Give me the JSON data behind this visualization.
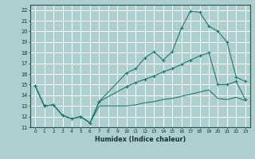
{
  "background_color": "#aecfcf",
  "grid_color": "#ffffff",
  "line_color": "#1e7a6e",
  "line1_x": [
    0,
    1,
    2,
    3,
    4,
    5,
    6,
    7,
    10,
    11,
    12,
    13,
    14,
    15,
    16,
    17,
    18,
    19,
    20,
    21,
    22,
    23
  ],
  "line1_y": [
    14.9,
    13.0,
    13.1,
    12.1,
    11.8,
    12.0,
    11.4,
    13.4,
    16.1,
    16.5,
    17.5,
    18.1,
    17.3,
    18.1,
    20.3,
    21.9,
    21.8,
    20.5,
    20.0,
    19.0,
    15.7,
    15.3
  ],
  "line2_x": [
    0,
    1,
    2,
    3,
    4,
    5,
    6,
    7,
    10,
    11,
    12,
    13,
    14,
    15,
    16,
    17,
    18,
    19,
    20,
    21,
    22,
    23
  ],
  "line2_y": [
    14.9,
    13.0,
    13.1,
    12.1,
    11.8,
    12.0,
    11.4,
    13.4,
    14.8,
    15.2,
    15.5,
    15.8,
    16.2,
    16.5,
    16.9,
    17.3,
    17.7,
    18.0,
    15.0,
    15.0,
    15.3,
    13.6
  ],
  "line3_x": [
    0,
    1,
    2,
    3,
    4,
    5,
    6,
    7,
    10,
    11,
    12,
    13,
    14,
    15,
    16,
    17,
    18,
    19,
    20,
    21,
    22,
    23
  ],
  "line3_y": [
    14.9,
    13.0,
    13.1,
    12.1,
    11.8,
    12.0,
    11.4,
    13.0,
    13.0,
    13.1,
    13.3,
    13.4,
    13.6,
    13.7,
    13.9,
    14.1,
    14.3,
    14.5,
    13.7,
    13.6,
    13.8,
    13.5
  ],
  "xlabel": "Humidex (Indice chaleur)",
  "xlim": [
    -0.5,
    23.5
  ],
  "ylim": [
    11,
    22.5
  ],
  "yticks": [
    11,
    12,
    13,
    14,
    15,
    16,
    17,
    18,
    19,
    20,
    21,
    22
  ],
  "xticks": [
    0,
    1,
    2,
    3,
    4,
    5,
    6,
    7,
    8,
    9,
    10,
    11,
    12,
    13,
    14,
    15,
    16,
    17,
    18,
    19,
    20,
    21,
    22,
    23
  ]
}
